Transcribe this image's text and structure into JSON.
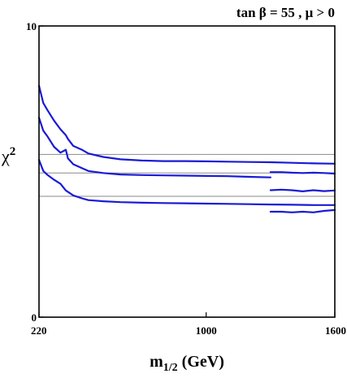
{
  "chart_data": {
    "type": "line",
    "title": "tan β = 55 ,  μ > 0",
    "xlabel": "m",
    "xlabel_sub": "1/2",
    "xlabel_unit": " (GeV)",
    "ylabel": "χ",
    "ylabel_sup": "2",
    "xlim": [
      220,
      1600
    ],
    "ylim": [
      0,
      10
    ],
    "x_ticks": [
      {
        "value": 220,
        "label": "220"
      },
      {
        "value": 1000,
        "label": "1000"
      },
      {
        "value": 1600,
        "label": "1600"
      }
    ],
    "y_ticks": [
      {
        "value": 0,
        "label": "0"
      },
      {
        "value": 10,
        "label": "10"
      }
    ],
    "reference_lines": [
      5.59,
      4.95,
      4.15
    ],
    "series": [
      {
        "x": [
          220,
          240,
          260,
          290,
          320,
          345,
          355,
          380,
          420,
          450,
          520,
          600,
          700,
          800,
          900,
          1000,
          1100,
          1200,
          1300,
          1400,
          1500,
          1600
        ],
        "y": [
          7.95,
          7.35,
          7.1,
          6.75,
          6.45,
          6.25,
          6.12,
          5.88,
          5.75,
          5.62,
          5.5,
          5.42,
          5.38,
          5.36,
          5.36,
          5.35,
          5.34,
          5.33,
          5.32,
          5.3,
          5.28,
          5.27
        ]
      },
      {
        "x": [
          1300,
          1350,
          1400,
          1450,
          1500,
          1550,
          1600
        ],
        "y": [
          4.98,
          4.98,
          4.96,
          4.95,
          4.96,
          4.95,
          4.93
        ]
      },
      {
        "x": [
          220,
          240,
          260,
          290,
          320,
          345,
          355,
          380,
          420,
          450,
          520,
          600,
          700,
          800,
          900,
          1000,
          1100,
          1200,
          1300
        ],
        "y": [
          6.85,
          6.4,
          6.2,
          5.85,
          5.65,
          5.75,
          5.45,
          5.25,
          5.12,
          5.02,
          4.95,
          4.9,
          4.88,
          4.87,
          4.86,
          4.85,
          4.84,
          4.82,
          4.8
        ]
      },
      {
        "x": [
          1300,
          1350,
          1400,
          1450,
          1500,
          1550,
          1600
        ],
        "y": [
          4.36,
          4.38,
          4.36,
          4.32,
          4.36,
          4.33,
          4.35
        ]
      },
      {
        "x": [
          220,
          240,
          260,
          290,
          320,
          345,
          380,
          420,
          450,
          520,
          600,
          700,
          800,
          900,
          1000,
          1100,
          1200,
          1300,
          1400,
          1500,
          1600
        ],
        "y": [
          5.4,
          5.02,
          4.88,
          4.72,
          4.58,
          4.35,
          4.18,
          4.08,
          4.02,
          3.98,
          3.95,
          3.93,
          3.92,
          3.91,
          3.9,
          3.89,
          3.88,
          3.87,
          3.86,
          3.85,
          3.85
        ]
      },
      {
        "x": [
          1300,
          1350,
          1400,
          1450,
          1500,
          1550,
          1600
        ],
        "y": [
          3.62,
          3.62,
          3.6,
          3.62,
          3.6,
          3.65,
          3.68
        ]
      }
    ]
  }
}
